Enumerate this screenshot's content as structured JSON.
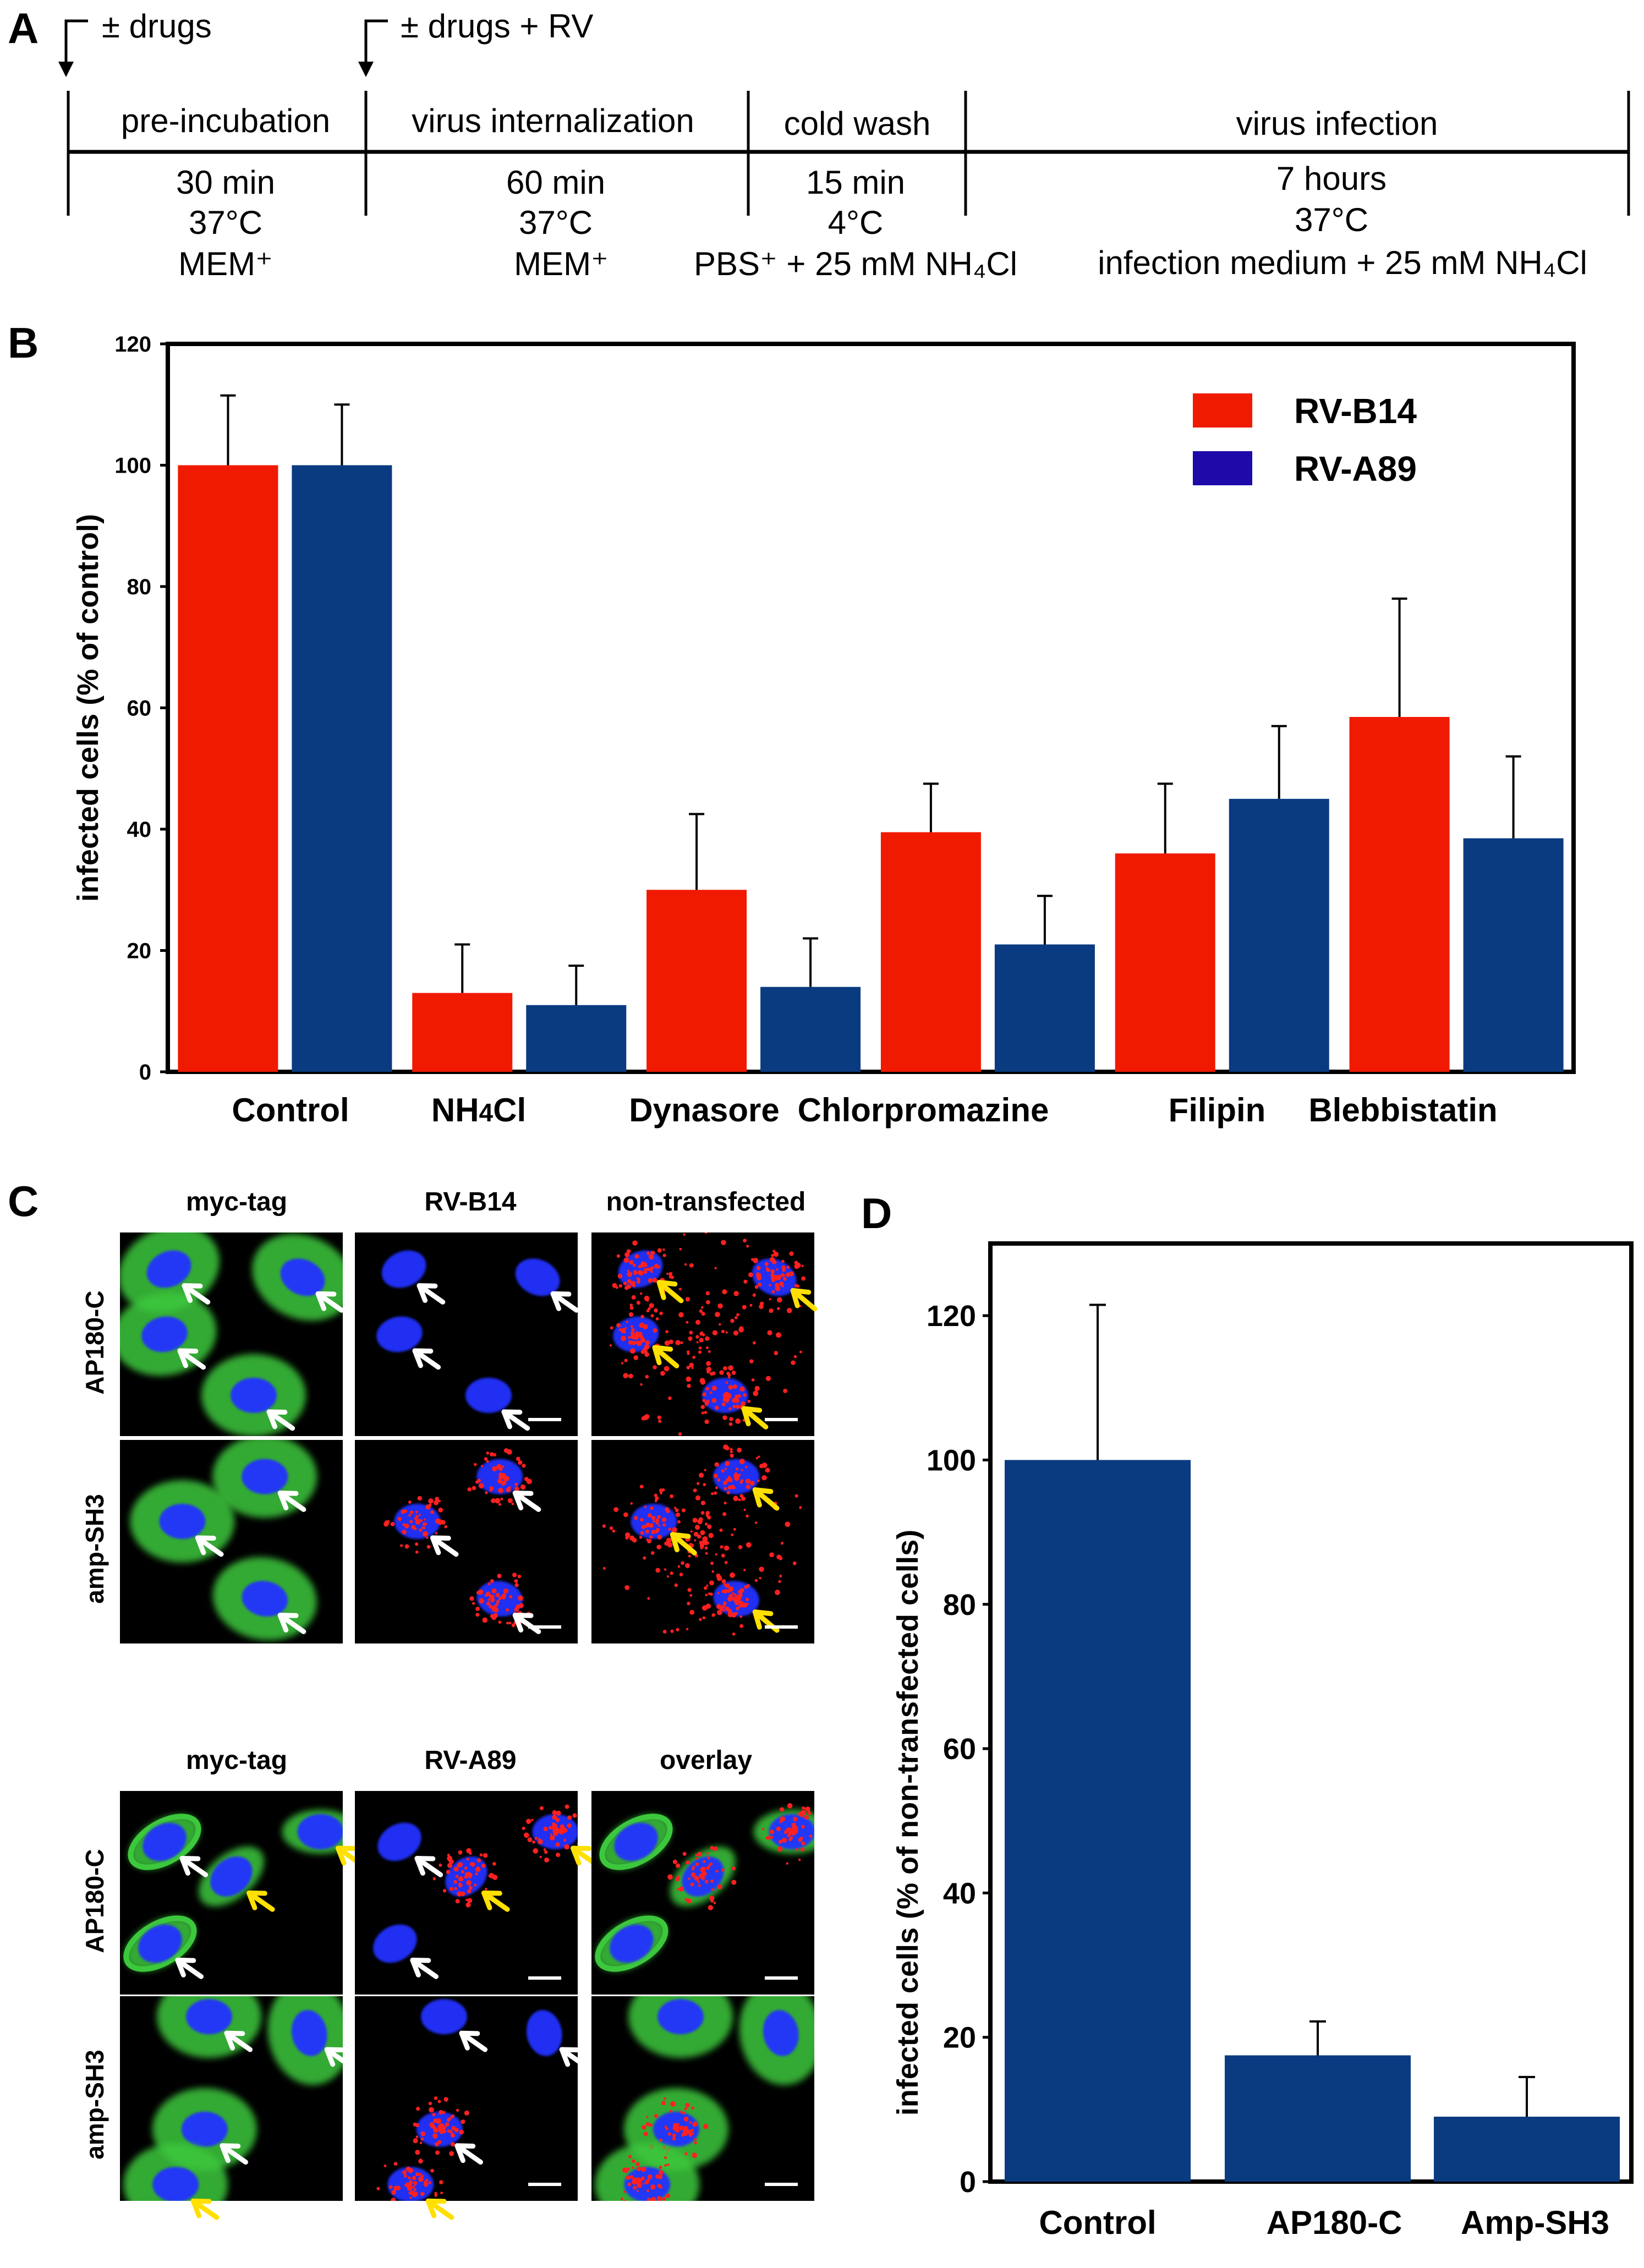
{
  "panelA": {
    "letter": "A",
    "markers": [
      {
        "label": "± drugs"
      },
      {
        "label": "± drugs + RV"
      }
    ],
    "stages": [
      {
        "name": "pre-incubation",
        "time": "30 min",
        "temp": "37°C",
        "medium": "MEM⁺"
      },
      {
        "name": "virus internalization",
        "time": "60 min",
        "temp": "37°C",
        "medium": "MEM⁺"
      },
      {
        "name": "cold wash",
        "time": "15 min",
        "temp": "4°C",
        "medium": "PBS⁺ + 25 mM NH₄Cl"
      },
      {
        "name": "virus infection",
        "time": "7 hours",
        "temp": "37°C",
        "medium": "infection medium + 25 mM NH₄Cl"
      }
    ]
  },
  "chart_data": [
    {
      "panel": "B",
      "type": "bar",
      "title": "",
      "xlabel": "",
      "ylabel": "infected cells (% of control)",
      "ylim": [
        0,
        120
      ],
      "yticks": [
        0,
        20,
        40,
        60,
        80,
        100,
        120
      ],
      "categories": [
        "Control",
        "NH4Cl",
        "Dynasore",
        "Chlorpromazine",
        "Filipin",
        "Blebbistatin"
      ],
      "series": [
        {
          "name": "RV-B14",
          "color": "#f01a00",
          "values": [
            100,
            13,
            30,
            39.5,
            36,
            58.5
          ],
          "errors": [
            11.5,
            8,
            12.5,
            8,
            11.5,
            19.5
          ]
        },
        {
          "name": "RV-A89",
          "color": "#0a3b80",
          "values": [
            100,
            11,
            14,
            21,
            45,
            38.5
          ],
          "errors": [
            10,
            6.5,
            8,
            8,
            12,
            13.5
          ]
        }
      ],
      "legend": [
        {
          "name": "RV-B14",
          "color": "#f01a00"
        },
        {
          "name": "RV-A89",
          "color": "#1d0aa8"
        }
      ],
      "legend_position": "top-right"
    },
    {
      "panel": "D",
      "type": "bar",
      "title": "",
      "xlabel": "",
      "ylabel": "infected cells (% of non-transfected cells)",
      "ylim": [
        0,
        130
      ],
      "yticks": [
        0,
        20,
        40,
        60,
        80,
        100,
        120
      ],
      "categories": [
        "Control",
        "AP180-C",
        "Amp-SH3"
      ],
      "series": [
        {
          "name": "RV-B14",
          "color": "#0a3b80",
          "values": [
            100,
            17.5,
            9
          ],
          "errors": [
            21.5,
            4.7,
            5.5
          ]
        }
      ]
    }
  ],
  "panelB": {
    "letter": "B"
  },
  "panelC": {
    "letter": "C",
    "top_columns": [
      "myc-tag",
      "RV-B14",
      "non-transfected"
    ],
    "bottom_columns": [
      "myc-tag",
      "RV-A89",
      "overlay"
    ],
    "rows": [
      "AP180-C",
      "amp-SH3"
    ]
  },
  "panelD": {
    "letter": "D"
  },
  "colors": {
    "red_bar": "#f01a00",
    "blue_bar": "#0a3b80",
    "legend_blue": "#1d0aa8",
    "nucleus": "#2233ff",
    "cytoplasm": "#3cc83c",
    "virus": "#ff2020",
    "arrow_white": "#ffffff",
    "arrow_yellow": "#ffe000"
  }
}
